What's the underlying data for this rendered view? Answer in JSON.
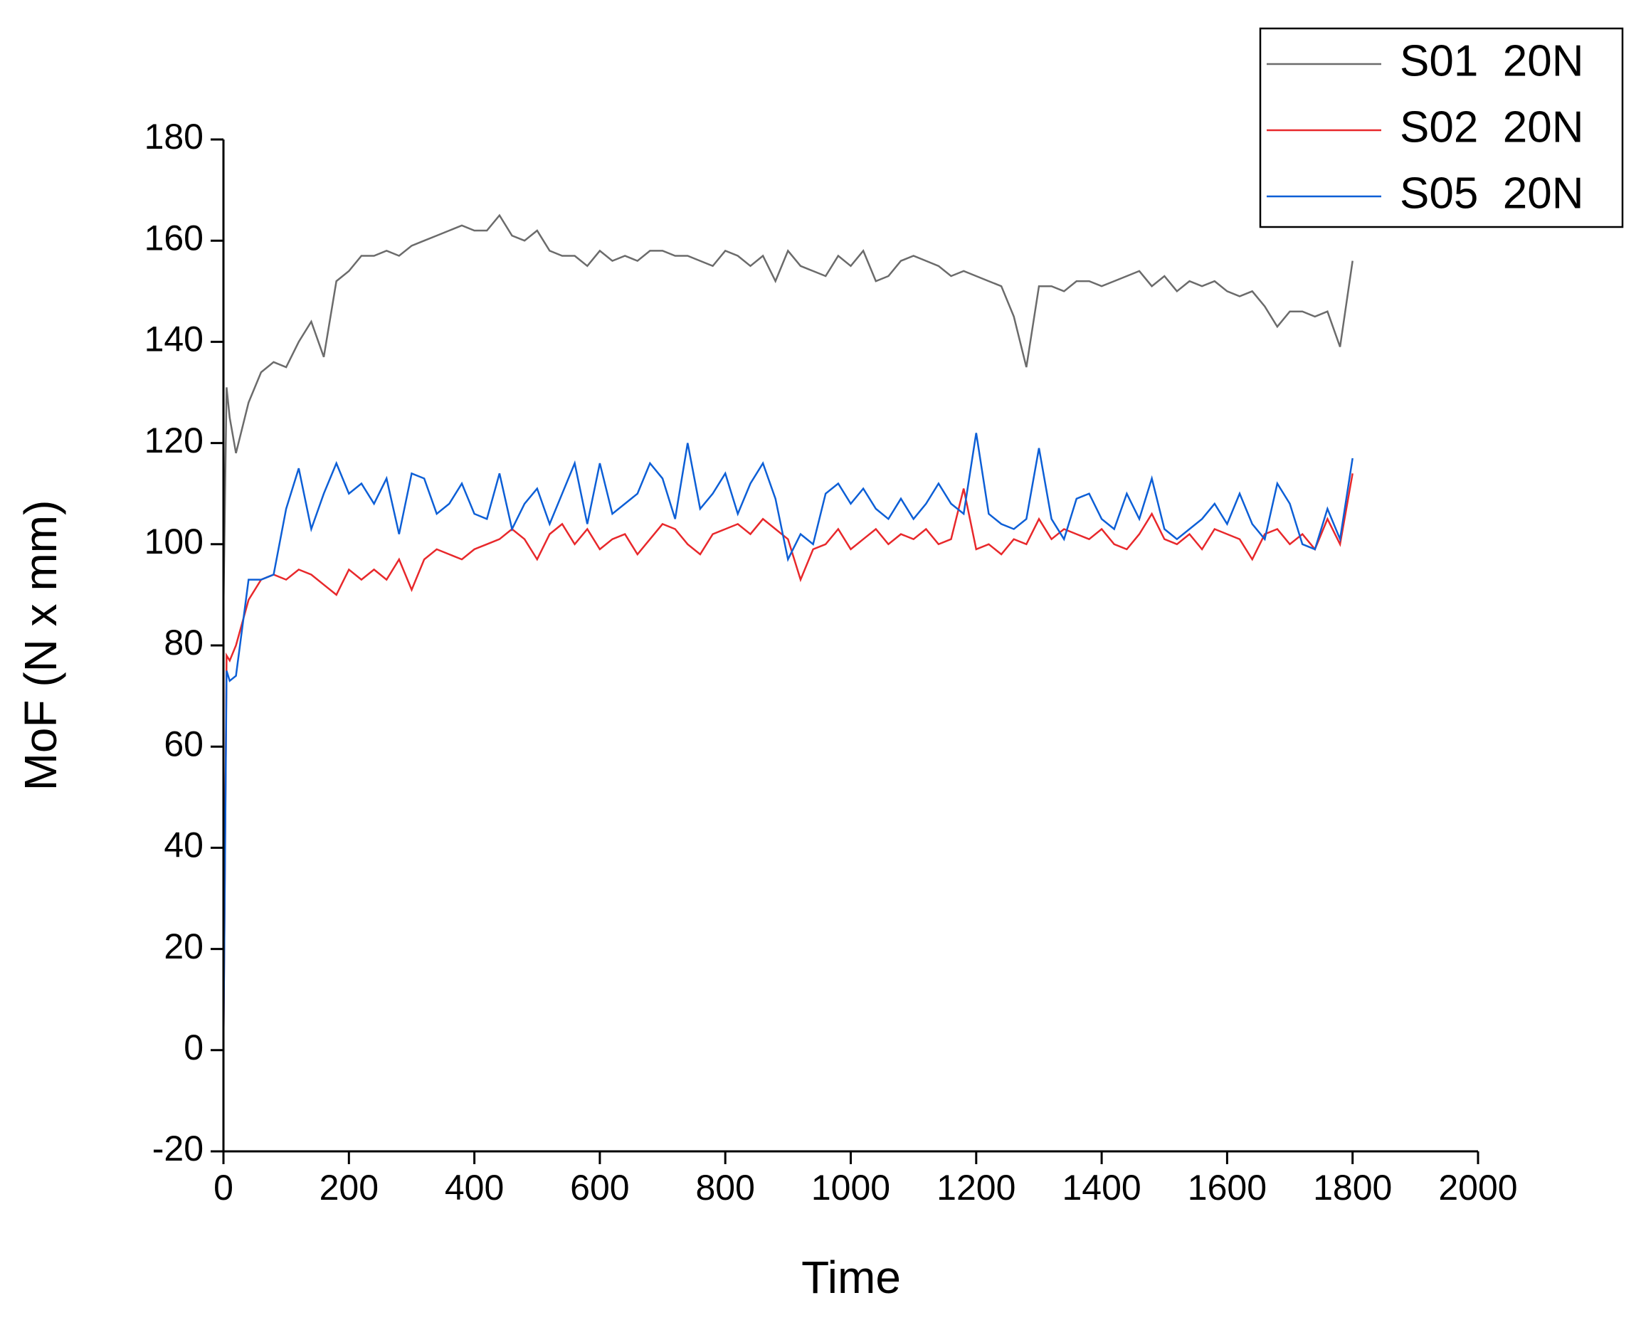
{
  "chart_data": {
    "type": "line",
    "xlabel": "Time",
    "ylabel": "MoF (N x mm)",
    "x": [
      0,
      5,
      10,
      20,
      40,
      60,
      80,
      100,
      120,
      140,
      160,
      180,
      200,
      220,
      240,
      260,
      280,
      300,
      320,
      340,
      360,
      380,
      400,
      420,
      440,
      460,
      480,
      500,
      520,
      540,
      560,
      580,
      600,
      620,
      640,
      660,
      680,
      700,
      720,
      740,
      760,
      780,
      800,
      820,
      840,
      860,
      880,
      900,
      920,
      940,
      960,
      980,
      1000,
      1020,
      1040,
      1060,
      1080,
      1100,
      1120,
      1140,
      1160,
      1180,
      1200,
      1220,
      1240,
      1260,
      1280,
      1300,
      1320,
      1340,
      1360,
      1380,
      1400,
      1420,
      1440,
      1460,
      1480,
      1500,
      1520,
      1540,
      1560,
      1580,
      1600,
      1620,
      1640,
      1660,
      1680,
      1700,
      1720,
      1740,
      1760,
      1780,
      1800
    ],
    "series": [
      {
        "name": "S01  20N",
        "color": "#6b6b6b",
        "values": [
          87,
          131,
          125,
          118,
          128,
          134,
          136,
          135,
          140,
          144,
          137,
          152,
          154,
          157,
          157,
          158,
          157,
          159,
          160,
          161,
          162,
          163,
          162,
          162,
          165,
          161,
          160,
          162,
          158,
          157,
          157,
          155,
          158,
          156,
          157,
          156,
          158,
          158,
          157,
          157,
          156,
          155,
          158,
          157,
          155,
          157,
          152,
          158,
          155,
          154,
          153,
          157,
          155,
          158,
          152,
          153,
          156,
          157,
          156,
          155,
          153,
          154,
          153,
          152,
          151,
          145,
          135,
          151,
          151,
          150,
          152,
          152,
          151,
          152,
          153,
          154,
          151,
          153,
          150,
          152,
          151,
          152,
          150,
          149,
          150,
          147,
          143,
          146,
          146,
          145,
          146,
          139,
          156
        ]
      },
      {
        "name": "S02  20N",
        "color": "#e8282b",
        "values": [
          0,
          78,
          77,
          80,
          89,
          93,
          94,
          93,
          95,
          94,
          92,
          90,
          95,
          93,
          95,
          93,
          97,
          91,
          97,
          99,
          98,
          97,
          99,
          100,
          101,
          103,
          101,
          97,
          102,
          104,
          100,
          103,
          99,
          101,
          102,
          98,
          101,
          104,
          103,
          100,
          98,
          102,
          103,
          104,
          102,
          105,
          103,
          101,
          93,
          99,
          100,
          103,
          99,
          101,
          103,
          100,
          102,
          101,
          103,
          100,
          101,
          111,
          99,
          100,
          98,
          101,
          100,
          105,
          101,
          103,
          102,
          101,
          103,
          100,
          99,
          102,
          106,
          101,
          100,
          102,
          99,
          103,
          102,
          101,
          97,
          102,
          103,
          100,
          102,
          99,
          105,
          100,
          114
        ]
      },
      {
        "name": "S05  20N",
        "color": "#0d5fd6",
        "values": [
          0,
          75,
          73,
          74,
          93,
          93,
          94,
          107,
          115,
          103,
          110,
          116,
          110,
          112,
          108,
          113,
          102,
          114,
          113,
          106,
          108,
          112,
          106,
          105,
          114,
          103,
          108,
          111,
          104,
          110,
          116,
          104,
          116,
          106,
          108,
          110,
          116,
          113,
          105,
          120,
          107,
          110,
          114,
          106,
          112,
          116,
          109,
          97,
          102,
          100,
          110,
          112,
          108,
          111,
          107,
          105,
          109,
          105,
          108,
          112,
          108,
          106,
          122,
          106,
          104,
          103,
          105,
          119,
          105,
          101,
          109,
          110,
          105,
          103,
          110,
          105,
          113,
          103,
          101,
          103,
          105,
          108,
          104,
          110,
          104,
          101,
          112,
          108,
          100,
          99,
          107,
          101,
          117
        ]
      }
    ],
    "xlim": [
      0,
      2000
    ],
    "xticks": [
      0,
      200,
      400,
      600,
      800,
      1000,
      1200,
      1400,
      1600,
      1800,
      2000
    ],
    "ylim": [
      -20,
      180
    ],
    "yticks": [
      -20,
      0,
      20,
      40,
      60,
      80,
      100,
      120,
      140,
      160,
      180
    ],
    "legend": "top-right"
  }
}
